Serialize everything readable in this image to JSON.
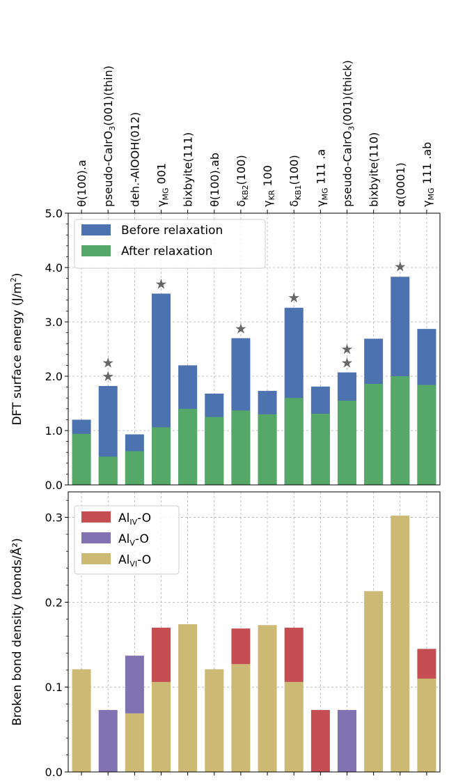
{
  "chart_data": [
    {
      "type": "bar",
      "stacked": "overlay",
      "categories": [
        {
          "label": "θ(100).a"
        },
        {
          "label": "pseudo-CaIrO",
          "sub": "3",
          "post": "(001)(thin)"
        },
        {
          "label": "deh.-AlOOH(012)"
        },
        {
          "label": "γ",
          "sub": "MG",
          "post": " 001"
        },
        {
          "label": "bixbyite(111)"
        },
        {
          "label": "θ(100).ab"
        },
        {
          "label": "δ",
          "sub": "KB2",
          "post": "(100)"
        },
        {
          "label": "γ",
          "sub": "KR",
          "post": " 100"
        },
        {
          "label": "δ",
          "sub": "KB1",
          "post": "(100)"
        },
        {
          "label": "γ",
          "sub": "MG",
          "post": " 111 .a"
        },
        {
          "label": "pseudo-CaIrO",
          "sub": "3",
          "post": "(001)(thick)"
        },
        {
          "label": "bixbyite(110)"
        },
        {
          "label": "α(0001)"
        },
        {
          "label": "γ",
          "sub": "MG",
          "post": " 111 .ab"
        }
      ],
      "ylabel": {
        "main": "DFT surface energy (J/m",
        "sup": "2",
        "end": ")"
      },
      "ylim": [
        0,
        5.0
      ],
      "yticks": [
        "0.0",
        "1.0",
        "2.0",
        "3.0",
        "4.0",
        "5.0"
      ],
      "grid": true,
      "legend_position": "top-left",
      "series": [
        {
          "name": "Before relaxation",
          "color": "#4c72b0",
          "values": [
            1.2,
            1.82,
            0.93,
            3.52,
            2.2,
            1.68,
            2.7,
            1.73,
            3.26,
            1.81,
            2.07,
            2.69,
            3.83,
            2.87
          ]
        },
        {
          "name": "After relaxation",
          "color": "#55a868",
          "values": [
            0.94,
            0.52,
            0.62,
            1.06,
            1.4,
            1.25,
            1.37,
            1.3,
            1.6,
            1.31,
            1.55,
            1.86,
            2.0,
            1.84
          ]
        }
      ],
      "stars": {
        "color": "#666666",
        "y_values": [
          [],
          [
            2.0,
            2.25
          ],
          [],
          [
            3.7
          ],
          [],
          [],
          [
            2.88
          ],
          [],
          [
            3.45
          ],
          [],
          [
            2.25,
            2.5
          ],
          [],
          [
            4.02
          ],
          []
        ]
      }
    },
    {
      "type": "bar",
      "stacked": true,
      "ylabel": "Broken bond density (bonds/Å²)",
      "ylim": [
        0,
        0.33
      ],
      "yticks": [
        "0.0",
        "0.1",
        "0.2",
        "0.3"
      ],
      "grid": true,
      "legend_position": "top-left",
      "series": [
        {
          "name": "Al",
          "sub": "VI",
          "post": "-O",
          "color": "#ccb974",
          "values": [
            0.121,
            0,
            0.069,
            0.106,
            0.174,
            0.121,
            0.127,
            0.173,
            0.106,
            0,
            0,
            0.213,
            0.302,
            0.11
          ]
        },
        {
          "name": "Al",
          "sub": "V",
          "post": "-O",
          "color": "#8172b2",
          "values": [
            0,
            0.073,
            0.068,
            0,
            0,
            0,
            0,
            0,
            0,
            0,
            0.073,
            0,
            0,
            0
          ]
        },
        {
          "name": "Al",
          "sub": "IV",
          "post": "-O",
          "color": "#c44e52",
          "values": [
            0,
            0,
            0,
            0.064,
            0,
            0,
            0.042,
            0,
            0.064,
            0.073,
            0,
            0,
            0,
            0.035
          ]
        }
      ],
      "legend_order": [
        2,
        1,
        0
      ]
    }
  ]
}
